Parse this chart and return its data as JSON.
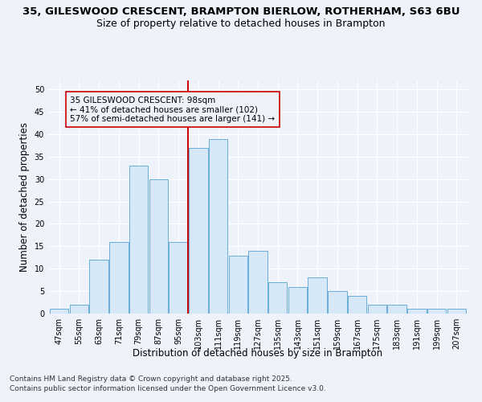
{
  "title_line1": "35, GILESWOOD CRESCENT, BRAMPTON BIERLOW, ROTHERHAM, S63 6BU",
  "title_line2": "Size of property relative to detached houses in Brampton",
  "xlabel": "Distribution of detached houses by size in Brampton",
  "ylabel": "Number of detached properties",
  "categories": [
    "47sqm",
    "55sqm",
    "63sqm",
    "71sqm",
    "79sqm",
    "87sqm",
    "95sqm",
    "103sqm",
    "111sqm",
    "119sqm",
    "127sqm",
    "135sqm",
    "143sqm",
    "151sqm",
    "159sqm",
    "167sqm",
    "175sqm",
    "183sqm",
    "191sqm",
    "199sqm",
    "207sqm"
  ],
  "values": [
    1,
    2,
    12,
    16,
    33,
    30,
    16,
    37,
    39,
    13,
    14,
    7,
    6,
    8,
    5,
    4,
    2,
    2,
    1,
    1,
    1
  ],
  "bar_color": "#d6e8f7",
  "bar_edge_color": "#6aaed6",
  "vline_color": "#cc0000",
  "annotation_box_edge": "#cc0000",
  "annotation_title": "35 GILESWOOD CRESCENT: 98sqm",
  "annotation_line1": "← 41% of detached houses are smaller (102)",
  "annotation_line2": "57% of semi-detached houses are larger (141) →",
  "ylim": [
    0,
    52
  ],
  "yticks": [
    0,
    5,
    10,
    15,
    20,
    25,
    30,
    35,
    40,
    45,
    50
  ],
  "vline_pos": 6.5,
  "footnote_line1": "Contains HM Land Registry data © Crown copyright and database right 2025.",
  "footnote_line2": "Contains public sector information licensed under the Open Government Licence v3.0.",
  "background_color": "#eef2fb",
  "grid_color": "#ffffff",
  "title_fontsize": 9.5,
  "subtitle_fontsize": 9,
  "axis_label_fontsize": 8.5,
  "tick_fontsize": 7,
  "annotation_fontsize": 7.5,
  "footnote_fontsize": 6.5
}
